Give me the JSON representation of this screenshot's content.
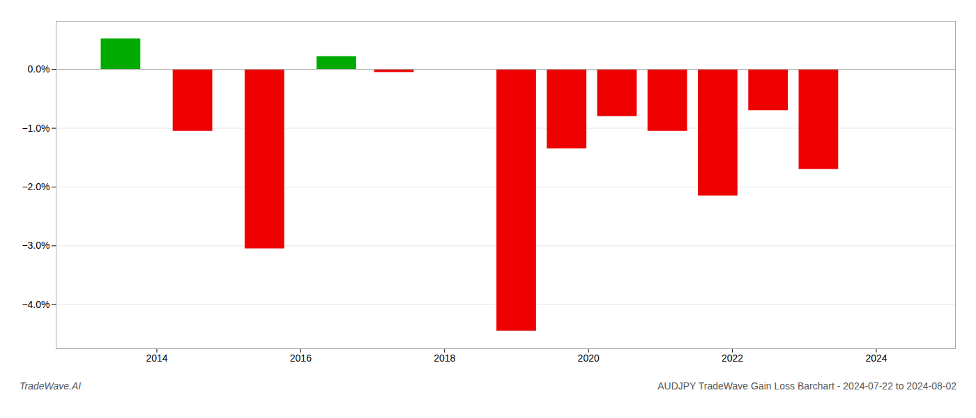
{
  "chart_data": {
    "type": "bar",
    "title": "AUDJPY TradeWave Gain Loss Barchart - 2024-07-22 to 2024-08-02",
    "annotations": [
      "TradeWave.AI"
    ],
    "x": [
      2013.5,
      2014.5,
      2015.5,
      2016.5,
      2017.3,
      2019.0,
      2019.7,
      2020.4,
      2021.1,
      2021.8,
      2022.5,
      2023.2
    ],
    "values": [
      0.52,
      -1.05,
      -3.05,
      0.22,
      -0.05,
      -4.45,
      -1.35,
      -0.8,
      -1.05,
      -2.15,
      -0.7,
      -1.7
    ],
    "colors": [
      "#00aa00",
      "#ee0000",
      "#ee0000",
      "#00aa00",
      "#ee0000",
      "#ee0000",
      "#ee0000",
      "#ee0000",
      "#ee0000",
      "#ee0000",
      "#ee0000",
      "#ee0000"
    ],
    "xlim": [
      2012.6,
      2025.1
    ],
    "xticks": [
      2014,
      2016,
      2018,
      2020,
      2022,
      2024
    ],
    "ylim": [
      -4.75,
      0.82
    ],
    "yticks": [
      {
        "value": 0.0,
        "label": "0.0%"
      },
      {
        "value": -1.0,
        "label": "−1.0%"
      },
      {
        "value": -2.0,
        "label": "−2.0%"
      },
      {
        "value": -3.0,
        "label": "−3.0%"
      },
      {
        "value": -4.0,
        "label": "−4.0%"
      }
    ],
    "grid": true
  }
}
